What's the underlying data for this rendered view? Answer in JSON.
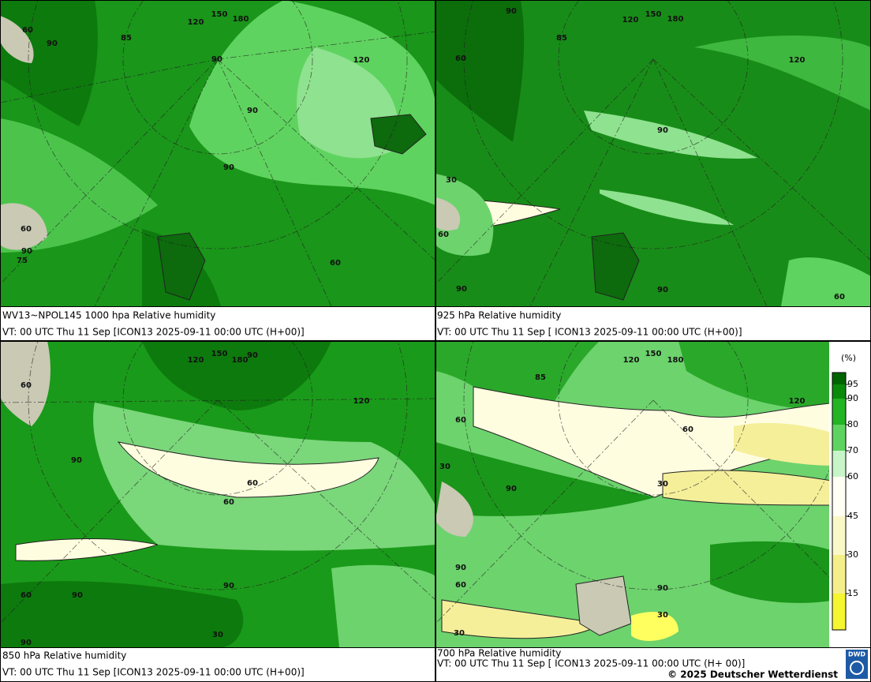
{
  "panels": [
    {
      "caption": {
        "line1": "WV13~NPOL145 1000 hpa Relative humidity",
        "line2": "VT: 00 UTC Thu  11 Sep [ICON13 2025-09-11 00:00 UTC (H+00)]"
      },
      "map_labels": [
        "60",
        "90",
        "90",
        "90",
        "60",
        "90",
        "75",
        "85",
        "120",
        "150",
        "180",
        "120",
        "60",
        "90"
      ]
    },
    {
      "caption": {
        "line1": "925 hPa Relative humidity",
        "line2": "VT: 00 UTC Thu  11 Sep [ ICON13 2025-09-11 00:00 UTC (H+00)]"
      },
      "map_labels": [
        "90",
        "60",
        "90",
        "60",
        "90",
        "90",
        "60",
        "30",
        "85",
        "120",
        "150",
        "180",
        "120"
      ]
    },
    {
      "caption": {
        "line1": "850 hPa  Relative humidity",
        "line2": "VT: 00 UTC Thu  11 Sep [ICON13 2025-09-11 00:00 UTC (H+00)]"
      },
      "map_labels": [
        "60",
        "90",
        "90",
        "60",
        "60",
        "90",
        "90",
        "60",
        "120",
        "150",
        "180",
        "90",
        "120",
        "30"
      ]
    },
    {
      "caption": {
        "line1": "700 hPa Relative humidity",
        "line2": "VT: 00 UTC Thu  11 Sep [ ICON13 2025-09-11 00:00 UTC  (H+ 00)]"
      },
      "map_labels": [
        "60",
        "30",
        "60",
        "90",
        "90",
        "60",
        "90",
        "30",
        "30",
        "30",
        "85",
        "120",
        "150",
        "180",
        "120"
      ]
    }
  ],
  "colorbar": {
    "unit": "(%)",
    "ticks": [
      "95",
      "90",
      "80",
      "70",
      "60",
      "45",
      "30",
      "15"
    ]
  },
  "footer": {
    "copyright": "© 2025 Deutscher Wetterdienst",
    "logo": "DWD"
  }
}
